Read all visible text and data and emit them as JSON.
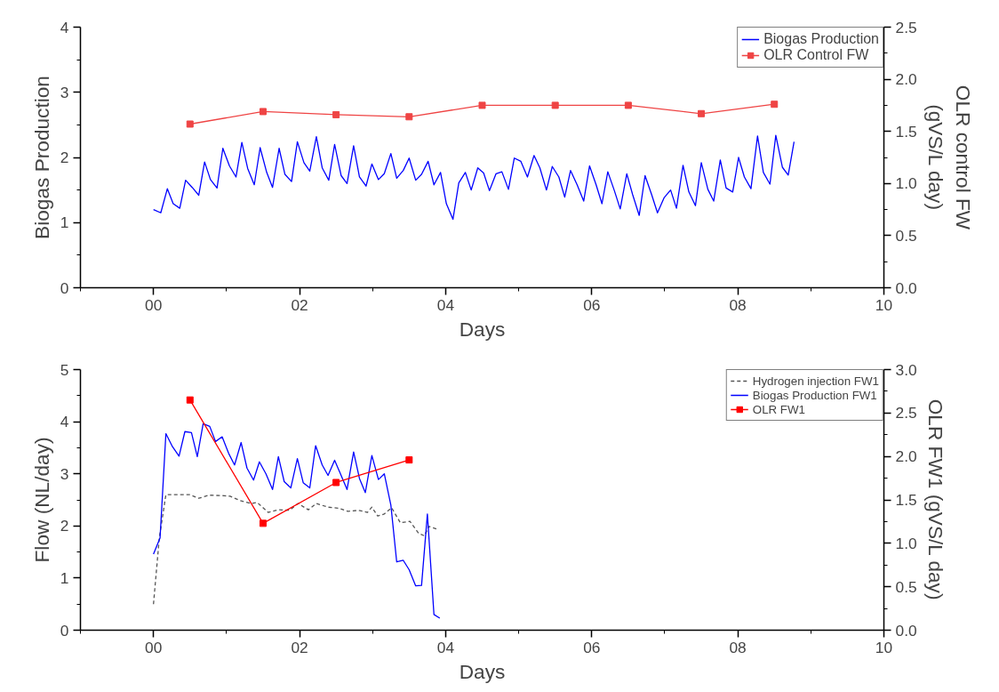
{
  "chart_data": [
    {
      "type": "line",
      "xlabel": "Days",
      "ylabel": "Biogas Production",
      "y2label": "OLR control FW\n(gVS/L day)",
      "xlim": [
        -1,
        10
      ],
      "xticks": [
        {
          "value": -1,
          "label": null
        },
        {
          "value": 0,
          "label": "00"
        },
        {
          "value": 1,
          "label": null
        },
        {
          "value": 2,
          "label": "02"
        },
        {
          "value": 3,
          "label": null
        },
        {
          "value": 4,
          "label": "04"
        },
        {
          "value": 5,
          "label": null
        },
        {
          "value": 6,
          "label": "06"
        },
        {
          "value": 7,
          "label": null
        },
        {
          "value": 8,
          "label": "08"
        },
        {
          "value": 9,
          "label": null
        },
        {
          "value": 10,
          "label": "10"
        }
      ],
      "ylim": [
        0,
        4
      ],
      "yticks": [
        0,
        {
          "value": 0.5,
          "label": null
        },
        1,
        {
          "value": 1.5,
          "label": null
        },
        2,
        {
          "value": 2.5,
          "label": null
        },
        3,
        {
          "value": 3.5,
          "label": null
        },
        4
      ],
      "y2lim": [
        0,
        2.5
      ],
      "y2ticks": [
        {
          "value": 0,
          "label": "0.0"
        },
        {
          "value": 0.25,
          "label": null
        },
        {
          "value": 0.5,
          "label": "0.5"
        },
        {
          "value": 0.75,
          "label": null
        },
        {
          "value": 1,
          "label": "1.0"
        },
        {
          "value": 1.25,
          "label": null
        },
        {
          "value": 1.5,
          "label": "1.5"
        },
        {
          "value": 1.75,
          "label": null
        },
        {
          "value": 2,
          "label": "2.0"
        },
        {
          "value": 2.25,
          "label": null
        },
        {
          "value": 2.5,
          "label": "2.5"
        }
      ],
      "grid": false,
      "legend": "top right",
      "series": [
        {
          "name": "Biogas Production",
          "color": "#0000ff",
          "marker": "none",
          "line_style": "solid",
          "x": [
            0,
            0.1,
            0.19,
            0.27,
            0.36,
            0.44,
            0.53,
            0.62,
            0.7,
            0.78,
            0.87,
            0.95,
            1.04,
            1.13,
            1.21,
            1.29,
            1.38,
            1.46,
            1.55,
            1.63,
            1.72,
            1.8,
            1.89,
            1.97,
            2.06,
            2.14,
            2.23,
            2.31,
            2.4,
            2.48,
            2.57,
            2.65,
            2.74,
            2.82,
            2.91,
            2.99,
            3.08,
            3.16,
            3.25,
            3.33,
            3.42,
            3.5,
            3.59,
            3.67,
            3.76,
            3.84,
            3.93,
            4.01,
            4.1,
            4.18,
            4.27,
            4.35,
            4.44,
            4.52,
            4.6,
            4.69,
            4.77,
            4.86,
            4.94,
            5.03,
            5.12,
            5.21,
            5.29,
            5.38,
            5.46,
            5.55,
            5.63,
            5.71,
            5.8,
            5.89,
            5.97,
            6.06,
            6.14,
            6.22,
            6.31,
            6.39,
            6.48,
            6.56,
            6.65,
            6.73,
            6.82,
            6.9,
            6.99,
            7.08,
            7.16,
            7.25,
            7.33,
            7.42,
            7.5,
            7.59,
            7.67,
            7.76,
            7.84,
            7.93,
            8.01,
            8.09,
            8.18,
            8.27,
            8.35,
            8.44,
            8.52,
            8.61,
            8.69,
            8.77
          ],
          "values": [
            1.2,
            1.15,
            1.52,
            1.29,
            1.22,
            1.65,
            1.54,
            1.42,
            1.93,
            1.66,
            1.53,
            2.14,
            1.87,
            1.7,
            2.23,
            1.83,
            1.58,
            2.15,
            1.77,
            1.54,
            2.14,
            1.74,
            1.63,
            2.24,
            1.92,
            1.79,
            2.32,
            1.84,
            1.65,
            2.2,
            1.72,
            1.6,
            2.18,
            1.7,
            1.56,
            1.9,
            1.66,
            1.75,
            2.06,
            1.68,
            1.8,
            1.99,
            1.65,
            1.74,
            1.94,
            1.58,
            1.77,
            1.29,
            1.05,
            1.61,
            1.77,
            1.5,
            1.84,
            1.76,
            1.49,
            1.75,
            1.78,
            1.51,
            1.99,
            1.94,
            1.7,
            2.03,
            1.84,
            1.5,
            1.86,
            1.7,
            1.39,
            1.8,
            1.58,
            1.33,
            1.87,
            1.58,
            1.29,
            1.78,
            1.49,
            1.21,
            1.75,
            1.43,
            1.11,
            1.72,
            1.43,
            1.15,
            1.38,
            1.5,
            1.22,
            1.88,
            1.47,
            1.26,
            1.92,
            1.51,
            1.33,
            1.96,
            1.53,
            1.47,
            2.0,
            1.7,
            1.52,
            2.33,
            1.77,
            1.59,
            2.34,
            1.85,
            1.73,
            2.24
          ]
        },
        {
          "name": "OLR Control FW",
          "color": "#ef4444",
          "marker": "square",
          "line_style": "solid",
          "axis": "y2",
          "x": [
            0.5,
            1.5,
            2.5,
            3.5,
            4.5,
            5.5,
            6.5,
            7.5,
            8.5
          ],
          "values": [
            1.57,
            1.69,
            1.66,
            1.64,
            1.75,
            1.75,
            1.75,
            1.67,
            1.76
          ]
        }
      ]
    },
    {
      "type": "line",
      "xlabel": "Days",
      "ylabel": "Flow (NL/day)",
      "y2label": "OLR FW1 (gVS/L day)",
      "xlim": [
        -1,
        10
      ],
      "xticks": [
        {
          "value": -1,
          "label": null
        },
        {
          "value": 0,
          "label": "00"
        },
        {
          "value": 1,
          "label": null
        },
        {
          "value": 2,
          "label": "02"
        },
        {
          "value": 3,
          "label": null
        },
        {
          "value": 4,
          "label": "04"
        },
        {
          "value": 5,
          "label": null
        },
        {
          "value": 6,
          "label": "06"
        },
        {
          "value": 7,
          "label": null
        },
        {
          "value": 8,
          "label": "08"
        },
        {
          "value": 9,
          "label": null
        },
        {
          "value": 10,
          "label": "10"
        }
      ],
      "ylim": [
        0,
        5
      ],
      "yticks": [
        0,
        {
          "value": 0.5,
          "label": null
        },
        1,
        {
          "value": 1.5,
          "label": null
        },
        2,
        {
          "value": 2.5,
          "label": null
        },
        3,
        {
          "value": 3.5,
          "label": null
        },
        4,
        {
          "value": 4.5,
          "label": null
        },
        5
      ],
      "y2lim": [
        0,
        3
      ],
      "y2ticks": [
        {
          "value": 0,
          "label": "0.0"
        },
        {
          "value": 0.25,
          "label": null
        },
        {
          "value": 0.5,
          "label": "0.5"
        },
        {
          "value": 0.75,
          "label": null
        },
        {
          "value": 1,
          "label": "1.0"
        },
        {
          "value": 1.25,
          "label": null
        },
        {
          "value": 1.5,
          "label": "1.5"
        },
        {
          "value": 1.75,
          "label": null
        },
        {
          "value": 2,
          "label": "2.0"
        },
        {
          "value": 2.25,
          "label": null
        },
        {
          "value": 2.5,
          "label": "2.5"
        },
        {
          "value": 2.75,
          "label": null
        },
        {
          "value": 3,
          "label": "3.0"
        }
      ],
      "grid": false,
      "legend": "top right",
      "series": [
        {
          "name": "Hydrogen injection FW1",
          "color": "#555555",
          "marker": "none",
          "line_style": "dashed",
          "x": [
            0,
            0.08,
            0.17,
            0.29,
            0.5,
            0.62,
            0.76,
            0.97,
            1.05,
            1.18,
            1.34,
            1.42,
            1.57,
            1.71,
            1.86,
            1.98,
            2.12,
            2.23,
            2.39,
            2.54,
            2.66,
            2.81,
            2.93,
            2.99,
            3.07,
            3.16,
            3.26,
            3.38,
            3.51,
            3.63,
            3.71,
            3.77,
            3.88
          ],
          "values": [
            0.5,
            1.77,
            2.6,
            2.6,
            2.6,
            2.53,
            2.59,
            2.58,
            2.57,
            2.49,
            2.43,
            2.45,
            2.26,
            2.31,
            2.3,
            2.43,
            2.31,
            2.43,
            2.36,
            2.34,
            2.28,
            2.3,
            2.26,
            2.36,
            2.19,
            2.23,
            2.35,
            2.06,
            2.09,
            1.86,
            1.81,
            1.99,
            1.94
          ]
        },
        {
          "name": "Biogas Production FW1",
          "color": "#0000ff",
          "marker": "none",
          "line_style": "solid",
          "x": [
            0,
            0.09,
            0.17,
            0.26,
            0.35,
            0.43,
            0.52,
            0.6,
            0.68,
            0.77,
            0.85,
            0.94,
            1.03,
            1.11,
            1.2,
            1.28,
            1.37,
            1.45,
            1.54,
            1.63,
            1.71,
            1.79,
            1.88,
            1.97,
            2.05,
            2.14,
            2.22,
            2.31,
            2.39,
            2.48,
            2.56,
            2.65,
            2.74,
            2.82,
            2.9,
            2.99,
            3.08,
            3.16,
            3.25,
            3.33,
            3.42,
            3.5,
            3.59,
            3.67,
            3.75,
            3.84,
            3.92
          ],
          "values": [
            1.46,
            1.77,
            3.77,
            3.52,
            3.34,
            3.81,
            3.79,
            3.33,
            3.96,
            3.91,
            3.62,
            3.71,
            3.39,
            3.17,
            3.6,
            3.11,
            2.88,
            3.23,
            3.0,
            2.7,
            3.33,
            2.85,
            2.73,
            3.29,
            2.83,
            2.73,
            3.54,
            3.17,
            2.97,
            3.26,
            3.0,
            2.7,
            3.42,
            2.91,
            2.64,
            3.35,
            2.89,
            3.0,
            2.4,
            1.31,
            1.34,
            1.16,
            0.85,
            0.86,
            2.23,
            0.3,
            0.23
          ]
        },
        {
          "name": "OLR FW1",
          "color": "#ff0000",
          "marker": "square",
          "line_style": "solid",
          "axis": "y2",
          "x": [
            0.5,
            1.5,
            2.5,
            3.5
          ],
          "values": [
            2.65,
            1.23,
            1.7,
            1.96
          ]
        }
      ]
    }
  ]
}
